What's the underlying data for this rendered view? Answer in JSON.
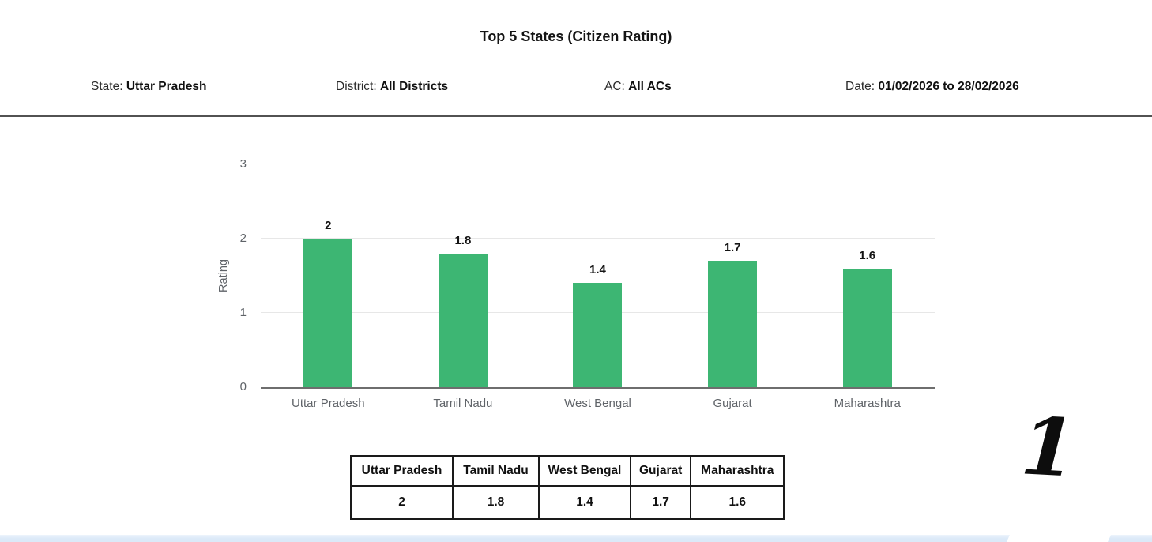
{
  "header": {
    "title": "Top 5 States (Citizen Rating)"
  },
  "filters": [
    {
      "label": "State:",
      "value": "Uttar Pradesh"
    },
    {
      "label": "District:",
      "value": "All Districts"
    },
    {
      "label": "AC:",
      "value": "All ACs"
    },
    {
      "label": "Date:",
      "value": "01/02/2026 to 28/02/2026"
    }
  ],
  "chart_data": {
    "type": "bar",
    "title": "Top 5 States (Citizen Rating)",
    "categories": [
      "Uttar Pradesh",
      "Tamil Nadu",
      "West Bengal",
      "Gujarat",
      "Maharashtra"
    ],
    "values": [
      2,
      1.8,
      1.4,
      1.7,
      1.6
    ],
    "value_labels": [
      "2",
      "1.8",
      "1.4",
      "1.7",
      "1.6"
    ],
    "xlabel": "",
    "ylabel": "Rating",
    "ylim": [
      0,
      3
    ],
    "yticks": [
      0,
      1,
      2,
      3
    ],
    "grid": "horizontal",
    "legend": "none",
    "bar_color": "#3db673"
  },
  "table": {
    "headers": [
      "Uttar Pradesh",
      "Tamil Nadu",
      "West Bengal",
      "Gujarat",
      "Maharashtra"
    ],
    "values": [
      "2",
      "1.8",
      "1.4",
      "1.7",
      "1.6"
    ]
  },
  "annotation": {
    "text": "1"
  },
  "colors": {
    "bar": "#3db673",
    "gridline": "#e7e7e7",
    "axis": "#6e6e6e",
    "divider": "#525252",
    "strip": "#dbe9f8"
  }
}
